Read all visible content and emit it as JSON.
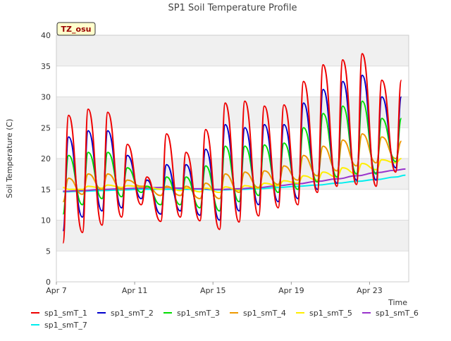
{
  "chart_data": {
    "type": "line",
    "title": "SP1 Soil Temperature Profile",
    "xlabel": "Time",
    "ylabel": "Soil Temperature (C)",
    "annotation": "TZ_osu",
    "xlim": [
      "2024-04-07",
      "2024-04-25"
    ],
    "ylim": [
      0,
      40
    ],
    "yticks": [
      0,
      5,
      10,
      15,
      20,
      25,
      30,
      35,
      40
    ],
    "xticks": [
      {
        "date": "2024-04-07",
        "label": "Apr 7"
      },
      {
        "date": "2024-04-11",
        "label": "Apr 11"
      },
      {
        "date": "2024-04-15",
        "label": "Apr 15"
      },
      {
        "date": "2024-04-19",
        "label": "Apr 19"
      },
      {
        "date": "2024-04-23",
        "label": "Apr 23"
      }
    ],
    "grid": "horizontal bands",
    "legend": "bottom",
    "series": [
      {
        "name": "sp1_smT_1",
        "color": "#ee0000",
        "x": [
          "2024-04-07T08:00",
          "2024-04-07T15:00",
          "2024-04-08T08:00",
          "2024-04-08T15:00",
          "2024-04-09T08:00",
          "2024-04-09T15:00",
          "2024-04-10T08:00",
          "2024-04-10T15:00",
          "2024-04-11T08:00",
          "2024-04-11T15:00",
          "2024-04-12T08:00",
          "2024-04-12T15:00",
          "2024-04-13T08:00",
          "2024-04-13T15:00",
          "2024-04-14T08:00",
          "2024-04-14T15:00",
          "2024-04-15T08:00",
          "2024-04-15T15:00",
          "2024-04-16T08:00",
          "2024-04-16T15:00",
          "2024-04-17T08:00",
          "2024-04-17T15:00",
          "2024-04-18T08:00",
          "2024-04-18T15:00",
          "2024-04-19T08:00",
          "2024-04-19T15:00",
          "2024-04-20T08:00",
          "2024-04-20T15:00",
          "2024-04-21T08:00",
          "2024-04-21T15:00",
          "2024-04-22T08:00",
          "2024-04-22T15:00",
          "2024-04-23T08:00",
          "2024-04-23T15:00",
          "2024-04-24T08:00",
          "2024-04-24T15:00"
        ],
        "y": [
          6.3,
          27.0,
          8.0,
          28.0,
          9.2,
          27.5,
          10.5,
          22.3,
          12.5,
          17.0,
          9.8,
          24.0,
          10.5,
          21.0,
          9.9,
          24.7,
          8.5,
          29.0,
          9.7,
          29.3,
          10.7,
          28.5,
          12.0,
          28.7,
          12.5,
          32.5,
          14.5,
          35.2,
          15.5,
          36.0,
          15.8,
          37.0,
          15.5,
          32.7,
          17.8,
          32.7
        ]
      },
      {
        "name": "sp1_smT_2",
        "color": "#0000cc",
        "x": [
          "2024-04-07T08:00",
          "2024-04-07T15:00",
          "2024-04-08T08:00",
          "2024-04-08T15:00",
          "2024-04-09T08:00",
          "2024-04-09T15:00",
          "2024-04-10T08:00",
          "2024-04-10T15:00",
          "2024-04-11T08:00",
          "2024-04-11T15:00",
          "2024-04-12T08:00",
          "2024-04-12T15:00",
          "2024-04-13T08:00",
          "2024-04-13T15:00",
          "2024-04-14T08:00",
          "2024-04-14T15:00",
          "2024-04-15T08:00",
          "2024-04-15T15:00",
          "2024-04-16T08:00",
          "2024-04-16T15:00",
          "2024-04-17T08:00",
          "2024-04-17T15:00",
          "2024-04-18T08:00",
          "2024-04-18T15:00",
          "2024-04-19T08:00",
          "2024-04-19T15:00",
          "2024-04-20T08:00",
          "2024-04-20T15:00",
          "2024-04-21T08:00",
          "2024-04-21T15:00",
          "2024-04-22T08:00",
          "2024-04-22T15:00",
          "2024-04-23T08:00",
          "2024-04-23T15:00",
          "2024-04-24T08:00",
          "2024-04-24T15:00"
        ],
        "y": [
          8.3,
          23.5,
          10.5,
          24.5,
          11.5,
          24.5,
          12.0,
          20.5,
          13.5,
          16.5,
          11.0,
          19.0,
          11.5,
          19.0,
          10.8,
          21.5,
          10.0,
          25.5,
          11.5,
          25.0,
          12.5,
          25.5,
          13.0,
          25.5,
          13.5,
          29.0,
          15.0,
          31.2,
          16.0,
          32.5,
          16.5,
          33.5,
          16.5,
          30.0,
          18.5,
          30.0
        ]
      },
      {
        "name": "sp1_smT_3",
        "color": "#00dd00",
        "x": [
          "2024-04-07T08:00",
          "2024-04-07T15:00",
          "2024-04-08T08:00",
          "2024-04-08T15:00",
          "2024-04-09T08:00",
          "2024-04-09T15:00",
          "2024-04-10T08:00",
          "2024-04-10T15:00",
          "2024-04-11T08:00",
          "2024-04-11T15:00",
          "2024-04-12T08:00",
          "2024-04-12T15:00",
          "2024-04-13T08:00",
          "2024-04-13T15:00",
          "2024-04-14T08:00",
          "2024-04-14T15:00",
          "2024-04-15T08:00",
          "2024-04-15T15:00",
          "2024-04-16T08:00",
          "2024-04-16T15:00",
          "2024-04-17T08:00",
          "2024-04-17T15:00",
          "2024-04-18T08:00",
          "2024-04-18T15:00",
          "2024-04-19T08:00",
          "2024-04-19T15:00",
          "2024-04-20T08:00",
          "2024-04-20T15:00",
          "2024-04-21T08:00",
          "2024-04-21T15:00",
          "2024-04-22T08:00",
          "2024-04-22T15:00",
          "2024-04-23T08:00",
          "2024-04-23T15:00",
          "2024-04-24T08:00",
          "2024-04-24T15:00"
        ],
        "y": [
          11.0,
          20.5,
          12.5,
          21.0,
          13.5,
          21.0,
          13.8,
          18.5,
          14.5,
          15.5,
          12.5,
          17.0,
          12.5,
          17.0,
          12.0,
          18.8,
          11.5,
          22.0,
          13.0,
          22.0,
          14.0,
          22.2,
          14.5,
          22.5,
          15.0,
          25.0,
          16.2,
          27.3,
          17.0,
          28.5,
          17.5,
          29.3,
          17.5,
          26.5,
          19.5,
          26.5
        ]
      },
      {
        "name": "sp1_smT_4",
        "color": "#ee9900",
        "x": [
          "2024-04-07T08:00",
          "2024-04-07T15:00",
          "2024-04-08T08:00",
          "2024-04-08T15:00",
          "2024-04-09T08:00",
          "2024-04-09T15:00",
          "2024-04-10T08:00",
          "2024-04-10T15:00",
          "2024-04-11T08:00",
          "2024-04-11T15:00",
          "2024-04-12T08:00",
          "2024-04-12T15:00",
          "2024-04-13T08:00",
          "2024-04-13T15:00",
          "2024-04-14T08:00",
          "2024-04-14T15:00",
          "2024-04-15T08:00",
          "2024-04-15T15:00",
          "2024-04-16T08:00",
          "2024-04-16T15:00",
          "2024-04-17T08:00",
          "2024-04-17T15:00",
          "2024-04-18T08:00",
          "2024-04-18T15:00",
          "2024-04-19T08:00",
          "2024-04-19T15:00",
          "2024-04-20T08:00",
          "2024-04-20T15:00",
          "2024-04-21T08:00",
          "2024-04-21T15:00",
          "2024-04-22T08:00",
          "2024-04-22T15:00",
          "2024-04-23T08:00",
          "2024-04-23T15:00",
          "2024-04-24T08:00",
          "2024-04-24T15:00"
        ],
        "y": [
          13.0,
          16.8,
          14.2,
          17.5,
          15.0,
          17.5,
          15.0,
          16.5,
          15.5,
          15.5,
          14.0,
          15.5,
          14.0,
          15.5,
          13.5,
          16.0,
          13.5,
          17.5,
          14.5,
          17.8,
          15.3,
          18.0,
          15.8,
          18.8,
          16.5,
          20.5,
          17.2,
          22.0,
          18.0,
          23.0,
          18.8,
          24.0,
          19.3,
          23.5,
          20.0,
          22.8
        ]
      },
      {
        "name": "sp1_smT_5",
        "color": "#ffee00",
        "x": [
          "2024-04-07T08:00",
          "2024-04-07T15:00",
          "2024-04-08T08:00",
          "2024-04-08T15:00",
          "2024-04-09T08:00",
          "2024-04-09T15:00",
          "2024-04-10T08:00",
          "2024-04-10T15:00",
          "2024-04-11T08:00",
          "2024-04-11T15:00",
          "2024-04-12T08:00",
          "2024-04-12T15:00",
          "2024-04-13T08:00",
          "2024-04-13T15:00",
          "2024-04-14T08:00",
          "2024-04-14T15:00",
          "2024-04-15T08:00",
          "2024-04-15T15:00",
          "2024-04-16T08:00",
          "2024-04-16T15:00",
          "2024-04-17T08:00",
          "2024-04-17T15:00",
          "2024-04-18T08:00",
          "2024-04-18T15:00",
          "2024-04-19T08:00",
          "2024-04-19T15:00",
          "2024-04-20T08:00",
          "2024-04-20T15:00",
          "2024-04-21T08:00",
          "2024-04-21T15:00",
          "2024-04-22T08:00",
          "2024-04-22T15:00",
          "2024-04-23T08:00",
          "2024-04-23T15:00",
          "2024-04-24T08:00",
          "2024-04-24T15:00"
        ],
        "y": [
          15.3,
          15.0,
          15.0,
          15.5,
          15.2,
          15.7,
          15.3,
          15.6,
          15.4,
          15.4,
          15.0,
          15.4,
          14.8,
          15.2,
          14.6,
          15.2,
          14.5,
          15.4,
          14.8,
          15.6,
          15.2,
          16.0,
          15.6,
          16.4,
          16.0,
          17.2,
          16.5,
          17.8,
          17.0,
          18.5,
          17.5,
          19.2,
          18.2,
          19.8,
          19.3,
          20.0
        ]
      },
      {
        "name": "sp1_smT_6",
        "color": "#9933cc",
        "x": [
          "2024-04-07T08:00",
          "2024-04-08T08:00",
          "2024-04-09T08:00",
          "2024-04-10T08:00",
          "2024-04-11T08:00",
          "2024-04-12T08:00",
          "2024-04-13T08:00",
          "2024-04-14T08:00",
          "2024-04-15T08:00",
          "2024-04-16T08:00",
          "2024-04-17T08:00",
          "2024-04-18T08:00",
          "2024-04-19T08:00",
          "2024-04-20T08:00",
          "2024-04-21T08:00",
          "2024-04-22T08:00",
          "2024-04-23T08:00",
          "2024-04-24T08:00",
          "2024-04-24T20:00"
        ],
        "y": [
          14.7,
          14.8,
          15.0,
          15.1,
          15.2,
          15.3,
          15.2,
          15.1,
          15.0,
          15.1,
          15.3,
          15.6,
          15.9,
          16.3,
          16.7,
          17.2,
          17.7,
          18.1,
          18.3
        ]
      },
      {
        "name": "sp1_smT_7",
        "color": "#00eeee",
        "x": [
          "2024-04-07T08:00",
          "2024-04-08T08:00",
          "2024-04-09T08:00",
          "2024-04-10T08:00",
          "2024-04-11T08:00",
          "2024-04-12T08:00",
          "2024-04-13T08:00",
          "2024-04-14T08:00",
          "2024-04-15T08:00",
          "2024-04-16T08:00",
          "2024-04-17T08:00",
          "2024-04-18T08:00",
          "2024-04-19T08:00",
          "2024-04-20T08:00",
          "2024-04-21T08:00",
          "2024-04-22T08:00",
          "2024-04-23T08:00",
          "2024-04-24T08:00",
          "2024-04-24T20:00"
        ],
        "y": [
          14.6,
          14.7,
          14.8,
          14.9,
          15.0,
          15.0,
          15.0,
          15.0,
          14.9,
          15.0,
          15.1,
          15.3,
          15.5,
          15.7,
          16.0,
          16.3,
          16.6,
          17.0,
          17.3
        ]
      }
    ]
  }
}
